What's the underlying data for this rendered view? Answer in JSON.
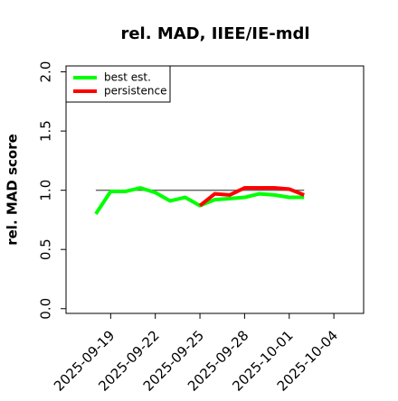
{
  "chart_data": {
    "type": "line",
    "title": "rel. MAD, IIEE/IE-mdl",
    "y_label": "rel. MAD score",
    "x": [
      "2025-09-18",
      "2025-09-19",
      "2025-09-20",
      "2025-09-21",
      "2025-09-22",
      "2025-09-23",
      "2025-09-24",
      "2025-09-25",
      "2025-09-26",
      "2025-09-27",
      "2025-09-28",
      "2025-09-29",
      "2025-09-30",
      "2025-10-01",
      "2025-10-02"
    ],
    "series": [
      {
        "name": "best est.",
        "color": "#00ff00",
        "values": [
          0.8,
          0.99,
          0.99,
          1.02,
          0.98,
          0.91,
          0.94,
          0.87,
          0.92,
          0.93,
          0.94,
          0.97,
          0.96,
          0.94,
          0.94
        ]
      },
      {
        "name": "persistence",
        "color": "#ff0000",
        "values": [
          null,
          null,
          null,
          null,
          null,
          null,
          null,
          0.87,
          0.97,
          0.96,
          1.02,
          1.02,
          1.02,
          1.01,
          0.96
        ]
      }
    ],
    "reference": 1.0,
    "xlim": [
      "2025-09-16",
      "2025-10-06"
    ],
    "xticks": [
      "2025-09-19",
      "2025-09-22",
      "2025-09-25",
      "2025-09-28",
      "2025-10-01",
      "2025-10-04"
    ],
    "ylim": [
      -0.04,
      2.05
    ],
    "yticks": [
      0.0,
      0.5,
      1.0,
      1.5,
      2.0
    ],
    "legend": "top-left"
  }
}
